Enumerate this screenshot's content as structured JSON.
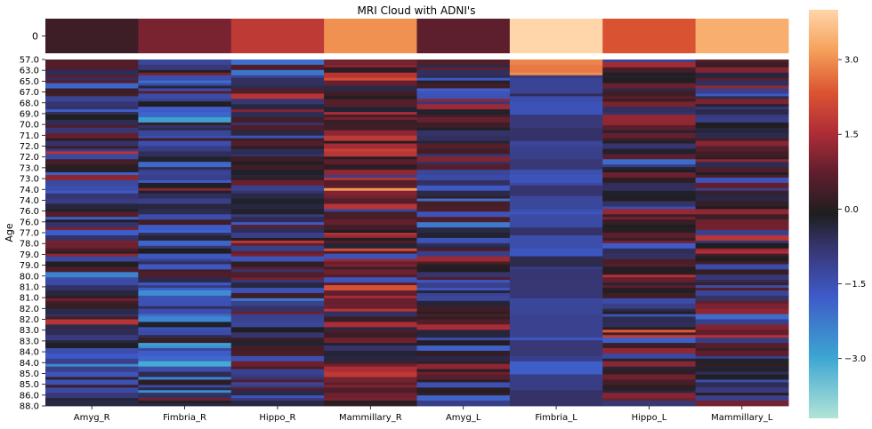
{
  "chart_data": {
    "type": "heatmap",
    "title": "MRI Cloud with ADNI's",
    "ylabel": "Age",
    "xlabel": "",
    "columns": [
      "Amyg_R",
      "Fimbria_R",
      "Hippo_R",
      "Mammillary_R",
      "Amyg_L",
      "Fimbria_L",
      "Hippo_L",
      "Mammillary_L"
    ],
    "top_panel": {
      "row_labels": [
        "0"
      ],
      "values": [
        [
          0.3,
          1.0,
          1.8,
          3.0,
          0.7,
          4.0,
          2.3,
          3.4
        ]
      ]
    },
    "main_panel": {
      "age_ticks": [
        "57.0",
        "63.0",
        "65.0",
        "67.0",
        "68.0",
        "69.0",
        "70.0",
        "71.0",
        "72.0",
        "72.0",
        "73.0",
        "73.0",
        "74.0",
        "74.0",
        "76.0",
        "76.0",
        "77.0",
        "78.0",
        "79.0",
        "79.0",
        "80.0",
        "81.0",
        "81.0",
        "82.0",
        "82.0",
        "83.0",
        "83.0",
        "84.0",
        "84.0",
        "85.0",
        "85.0",
        "86.0",
        "88.0"
      ],
      "row_count": 132,
      "column_means": [
        -0.4,
        -1.0,
        -0.2,
        0.7,
        -0.3,
        -1.2,
        -0.2,
        0.1
      ]
    },
    "colorbar": {
      "colormap": "icefire",
      "vmin": -4.2,
      "vmax": 4.0,
      "ticks": [
        "3.0",
        "1.5",
        "0.0",
        "−1.5",
        "−3.0"
      ]
    }
  }
}
